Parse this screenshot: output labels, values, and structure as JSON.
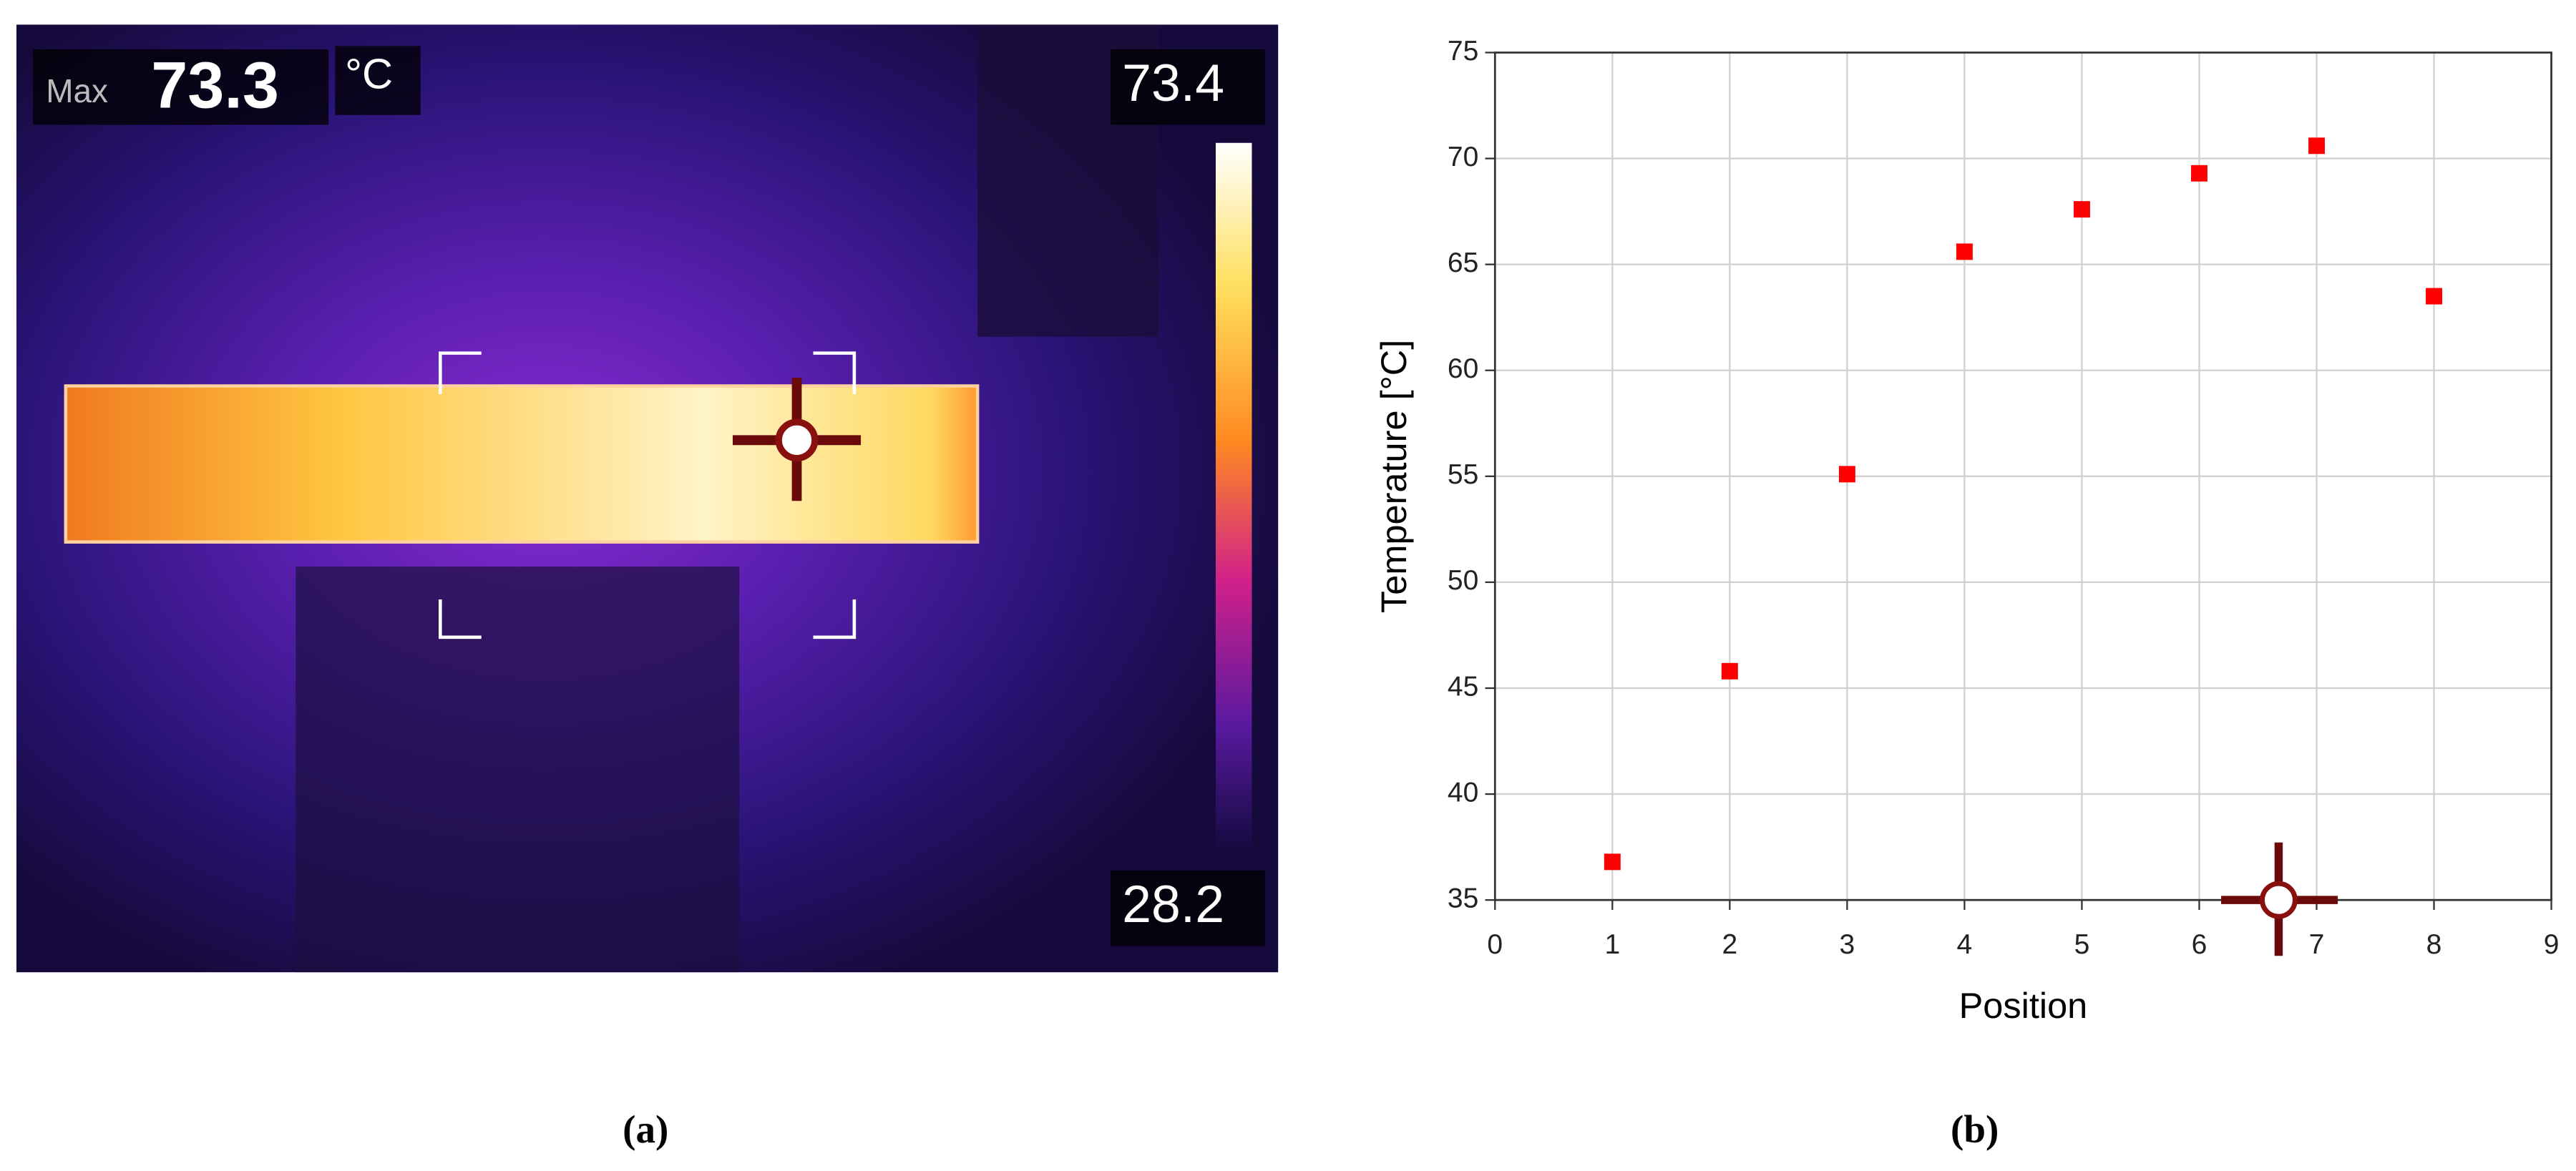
{
  "thermal_image": {
    "max_label": "Max",
    "max_value": "73.3",
    "unit": "°C",
    "scale_max": "73.4",
    "scale_min": "28.2",
    "caption": "(a)"
  },
  "chart_data": {
    "type": "scatter",
    "caption": "(b)",
    "x_label": "Position",
    "y_label": "Temperature [°C]",
    "x": [
      1,
      2,
      3,
      4,
      5,
      6,
      7,
      8
    ],
    "series": [
      {
        "name": "Temperature",
        "color": "#ff0000",
        "values": [
          36.8,
          45.8,
          55.1,
          65.6,
          67.6,
          69.3,
          70.6,
          63.5
        ]
      }
    ],
    "xlim": [
      0,
      9
    ],
    "ylim": [
      35,
      75
    ],
    "xticks": [
      0,
      1,
      2,
      3,
      4,
      5,
      6,
      7,
      8,
      9
    ],
    "yticks": [
      35,
      40,
      45,
      50,
      55,
      60,
      65,
      70,
      75
    ],
    "grid": true
  }
}
